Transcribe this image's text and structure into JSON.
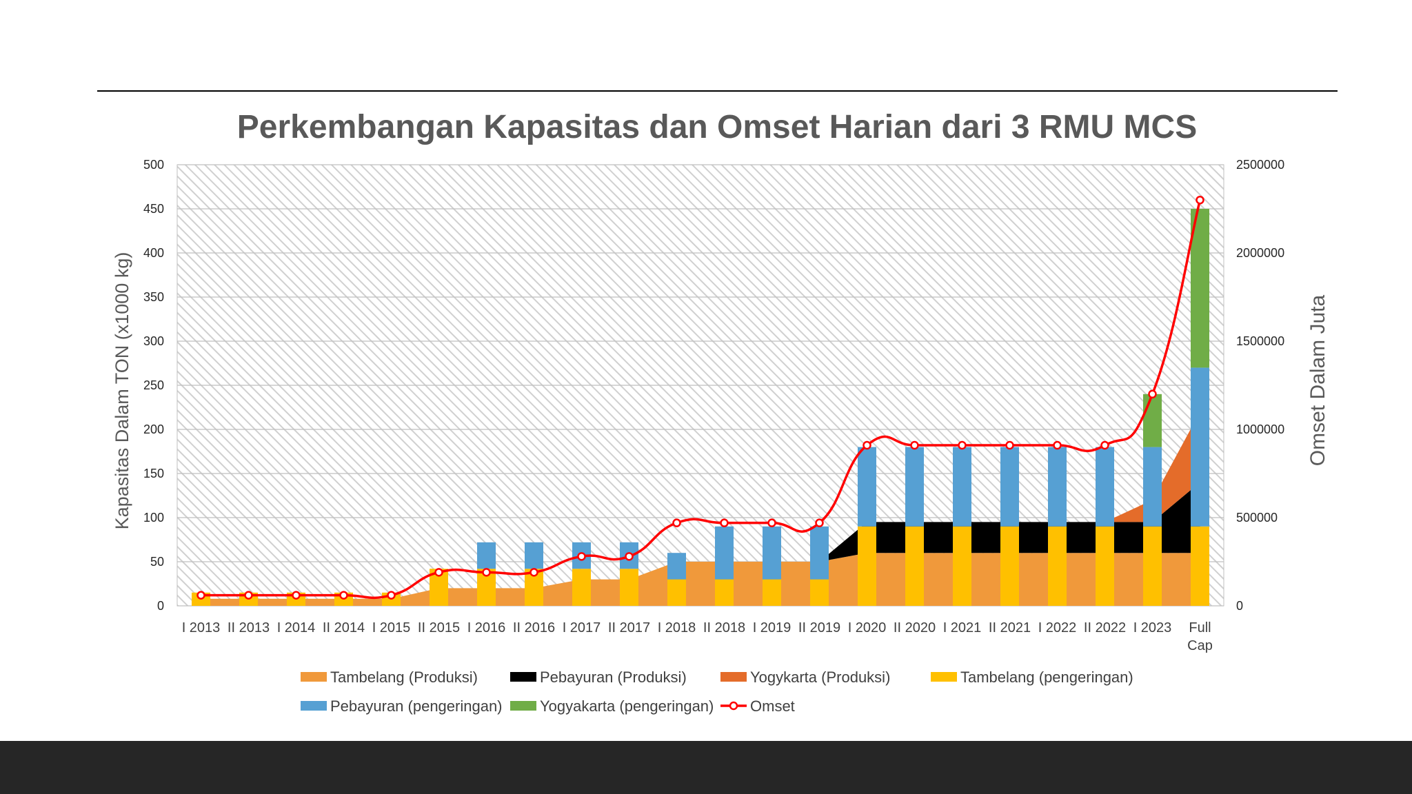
{
  "chart_data": {
    "type": "bar",
    "title": "Perkembangan Kapasitas dan Omset Harian dari 3 RMU MCS",
    "ylabel": "Kapasitas Dalam TON (x1000 kg)",
    "y2label": "Omset Dalam Juta",
    "ylim": [
      0,
      500
    ],
    "y2lim": [
      0,
      2500000
    ],
    "yticks": [
      "0",
      "50",
      "100",
      "150",
      "200",
      "250",
      "300",
      "350",
      "400",
      "450",
      "500"
    ],
    "y2ticks": [
      "0",
      "500000",
      "1000000",
      "1500000",
      "2000000",
      "2500000"
    ],
    "grid": true,
    "legend_position": "bottom",
    "categories": [
      "I 2013",
      "II 2013",
      "I 2014",
      "II 2014",
      "I 2015",
      "II 2015",
      "I 2016",
      "II 2016",
      "I 2017",
      "II 2017",
      "I 2018",
      "II 2018",
      "I 2019",
      "II 2019",
      "I 2020",
      "II 2020",
      "I 2021",
      "II 2021",
      "I 2022",
      "II 2022",
      "I 2023",
      "Full Cap"
    ],
    "area_series": [
      {
        "name": "Tambelang (Produksi)",
        "color": "#F0993B",
        "values": [
          8,
          8,
          8,
          8,
          8,
          20,
          20,
          20,
          30,
          30,
          50,
          50,
          50,
          50,
          60,
          60,
          60,
          60,
          60,
          60,
          60,
          60
        ]
      },
      {
        "name": "Pebayuran (Produksi)",
        "color": "#000000",
        "values": [
          0,
          0,
          0,
          0,
          0,
          0,
          0,
          0,
          0,
          0,
          0,
          0,
          0,
          0,
          35,
          35,
          35,
          35,
          35,
          35,
          35,
          80
        ]
      },
      {
        "name": "Yogykarta (Produksi)",
        "color": "#E46C2A",
        "values": [
          0,
          0,
          0,
          0,
          0,
          0,
          0,
          0,
          0,
          0,
          0,
          0,
          0,
          0,
          0,
          0,
          0,
          0,
          0,
          0,
          25,
          80
        ]
      }
    ],
    "bar_series": [
      {
        "name": "Tambelang (pengeringan)",
        "color": "#FFC000",
        "values": [
          15,
          15,
          15,
          15,
          15,
          42,
          42,
          42,
          42,
          42,
          30,
          30,
          30,
          30,
          90,
          90,
          90,
          90,
          90,
          90,
          90,
          90
        ]
      },
      {
        "name": "Pebayuran (pengeringan)",
        "color": "#56A0D3",
        "values": [
          0,
          0,
          0,
          0,
          0,
          0,
          30,
          30,
          30,
          30,
          30,
          60,
          60,
          60,
          90,
          90,
          90,
          90,
          90,
          90,
          90,
          180
        ]
      },
      {
        "name": "Yogyakarta (pengeringan)",
        "color": "#70AD47",
        "values": [
          0,
          0,
          0,
          0,
          0,
          0,
          0,
          0,
          0,
          0,
          0,
          0,
          0,
          0,
          0,
          0,
          0,
          0,
          0,
          0,
          60,
          180
        ]
      }
    ],
    "line_series": [
      {
        "name": "Omset",
        "color": "#FF0000",
        "axis": "secondary",
        "values": [
          60000,
          60000,
          60000,
          60000,
          60000,
          190000,
          190000,
          190000,
          280000,
          280000,
          470000,
          470000,
          470000,
          470000,
          910000,
          910000,
          910000,
          910000,
          910000,
          910000,
          1200000,
          2300000
        ]
      }
    ]
  }
}
